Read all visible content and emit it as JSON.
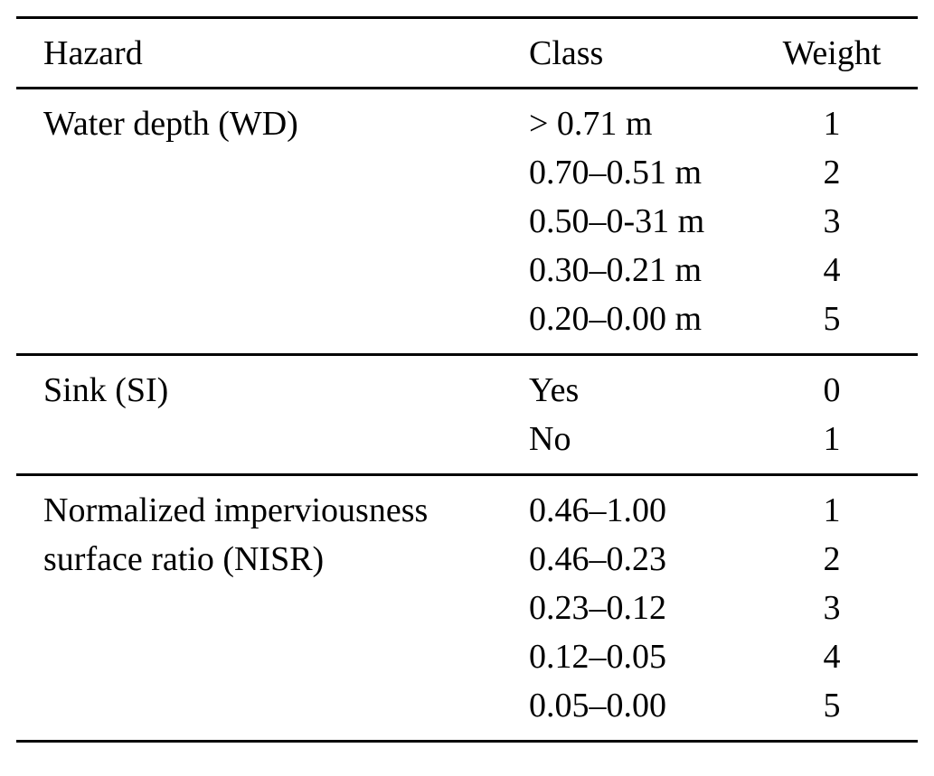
{
  "table": {
    "columns": [
      {
        "label": "Hazard"
      },
      {
        "label": "Class"
      },
      {
        "label": "Weight"
      }
    ],
    "sections": [
      {
        "hazard": "Water depth (WD)",
        "rows": [
          {
            "class": "> 0.71 m",
            "weight": "1"
          },
          {
            "class": "0.70–0.51 m",
            "weight": "2"
          },
          {
            "class": "0.50–0-31 m",
            "weight": "3"
          },
          {
            "class": "0.30–0.21 m",
            "weight": "4"
          },
          {
            "class": "0.20–0.00 m",
            "weight": "5"
          }
        ]
      },
      {
        "hazard": "Sink (SI)",
        "rows": [
          {
            "class": "Yes",
            "weight": "0"
          },
          {
            "class": "No",
            "weight": "1"
          }
        ]
      },
      {
        "hazard": "Normalized imperviousness surface ratio (NISR)",
        "rows": [
          {
            "class": "0.46–1.00",
            "weight": "1"
          },
          {
            "class": "0.46–0.23",
            "weight": "2"
          },
          {
            "class": "0.23–0.12",
            "weight": "3"
          },
          {
            "class": "0.12–0.05",
            "weight": "4"
          },
          {
            "class": "0.05–0.00",
            "weight": "5"
          }
        ]
      }
    ],
    "colors": {
      "text": "#000000",
      "rule": "#000000",
      "background": "#ffffff"
    }
  }
}
